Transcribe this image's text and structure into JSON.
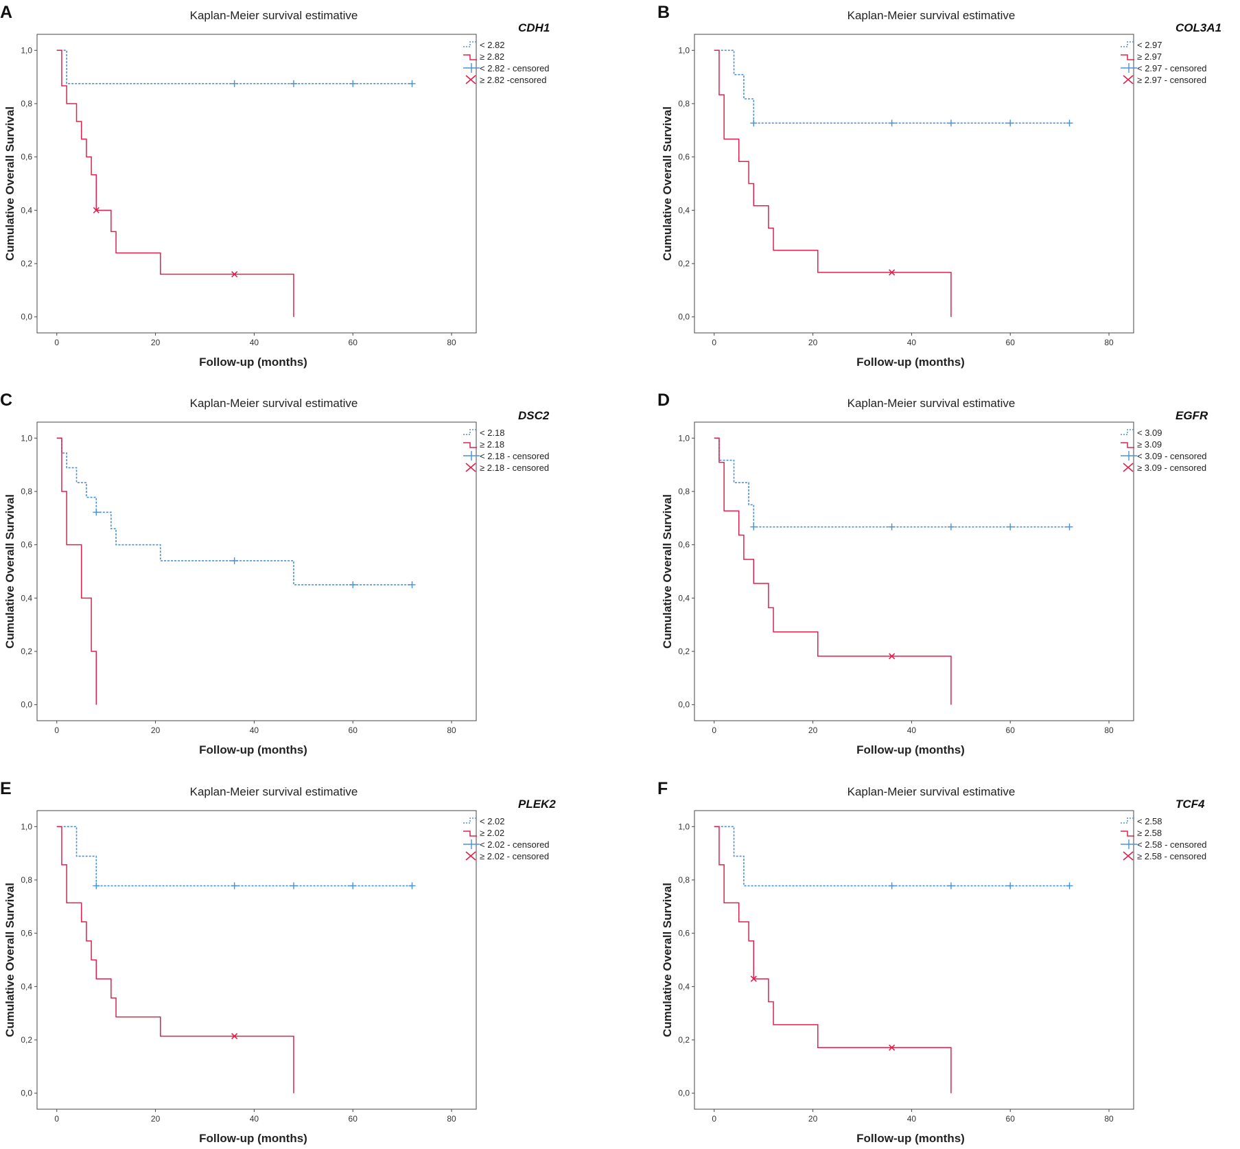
{
  "colors": {
    "low": "#4a90d9",
    "high": "#e0204a"
  },
  "chart_data": [
    {
      "panel": "A",
      "type": "line",
      "title": "Kaplan-Meier survival estimative",
      "xlabel": "Follow-up (months)",
      "ylabel": "Cumulative Overall Survival",
      "xlim": [
        -4,
        85
      ],
      "ylim": [
        -0.06,
        1.06
      ],
      "xticks": [
        "0",
        "20",
        "40",
        "60",
        "80"
      ],
      "yticks": [
        "0,0",
        "0,2",
        "0,4",
        "0,6",
        "0,8",
        "1,0"
      ],
      "legend": {
        "gene": "CDH1",
        "low": "< 2.82",
        "high": "≥ 2.82",
        "low_censored": "< 2.82 - censored",
        "high_censored": "≥ 2.82 -censored"
      },
      "series": [
        {
          "name": "< 2.82",
          "style": "dotted",
          "color": "low",
          "steps": [
            [
              0,
              1.0
            ],
            [
              2,
              0.875
            ],
            [
              72,
              0.875
            ]
          ],
          "censored": [
            36,
            48,
            60,
            72
          ]
        },
        {
          "name": "≥ 2.82",
          "style": "solid",
          "color": "high",
          "steps": [
            [
              0,
              1.0
            ],
            [
              1,
              0.867
            ],
            [
              2,
              0.8
            ],
            [
              4,
              0.733
            ],
            [
              5,
              0.667
            ],
            [
              6,
              0.6
            ],
            [
              7,
              0.533
            ],
            [
              8,
              0.4
            ],
            [
              11,
              0.32
            ],
            [
              12,
              0.24
            ],
            [
              21,
              0.16
            ],
            [
              48,
              0.0
            ]
          ],
          "censored": [
            8,
            36
          ]
        }
      ]
    },
    {
      "panel": "B",
      "type": "line",
      "title": "Kaplan-Meier survival estimative",
      "xlabel": "Follow-up (months)",
      "ylabel": "Cumulative Overall Survival",
      "xlim": [
        -4,
        85
      ],
      "ylim": [
        -0.06,
        1.06
      ],
      "xticks": [
        "0",
        "20",
        "40",
        "60",
        "80"
      ],
      "yticks": [
        "0,0",
        "0,2",
        "0,4",
        "0,6",
        "0,8",
        "1,0"
      ],
      "legend": {
        "gene": "COL3A1",
        "low": "< 2.97",
        "high": "≥ 2.97",
        "low_censored": "< 2.97 - censored",
        "high_censored": "≥ 2.97 - censored"
      },
      "series": [
        {
          "name": "< 2.97",
          "style": "dotted",
          "color": "low",
          "steps": [
            [
              0,
              1.0
            ],
            [
              4,
              0.909
            ],
            [
              6,
              0.818
            ],
            [
              8,
              0.727
            ],
            [
              72,
              0.727
            ]
          ],
          "censored": [
            8,
            36,
            48,
            60,
            72
          ]
        },
        {
          "name": "≥ 2.97",
          "style": "solid",
          "color": "high",
          "steps": [
            [
              0,
              1.0
            ],
            [
              1,
              0.833
            ],
            [
              2,
              0.667
            ],
            [
              5,
              0.583
            ],
            [
              7,
              0.5
            ],
            [
              8,
              0.417
            ],
            [
              11,
              0.333
            ],
            [
              12,
              0.25
            ],
            [
              21,
              0.167
            ],
            [
              48,
              0.0
            ]
          ],
          "censored": [
            36
          ]
        }
      ]
    },
    {
      "panel": "C",
      "type": "line",
      "title": "Kaplan-Meier survival estimative",
      "xlabel": "Follow-up (months)",
      "ylabel": "Cumulative Overall Survival",
      "xlim": [
        -4,
        85
      ],
      "ylim": [
        -0.06,
        1.06
      ],
      "xticks": [
        "0",
        "20",
        "40",
        "60",
        "80"
      ],
      "yticks": [
        "0,0",
        "0,2",
        "0,4",
        "0,6",
        "0,8",
        "1,0"
      ],
      "legend": {
        "gene": "DSC2",
        "low": "< 2.18",
        "high": "≥ 2.18",
        "low_censored": "< 2.18 - censored",
        "high_censored": "≥ 2.18  - censored"
      },
      "series": [
        {
          "name": "< 2.18",
          "style": "dotted",
          "color": "low",
          "steps": [
            [
              0,
              1.0
            ],
            [
              1,
              0.944
            ],
            [
              2,
              0.889
            ],
            [
              4,
              0.833
            ],
            [
              6,
              0.778
            ],
            [
              8,
              0.722
            ],
            [
              11,
              0.66
            ],
            [
              12,
              0.6
            ],
            [
              21,
              0.54
            ],
            [
              48,
              0.45
            ],
            [
              72,
              0.45
            ]
          ],
          "censored": [
            8,
            36,
            60,
            72
          ]
        },
        {
          "name": "≥ 2.18",
          "style": "solid",
          "color": "high",
          "steps": [
            [
              0,
              1.0
            ],
            [
              1,
              0.8
            ],
            [
              2,
              0.6
            ],
            [
              5,
              0.4
            ],
            [
              7,
              0.2
            ],
            [
              8,
              0.0
            ]
          ],
          "censored": []
        }
      ]
    },
    {
      "panel": "D",
      "type": "line",
      "title": "Kaplan-Meier survival estimative",
      "xlabel": "Follow-up (months)",
      "ylabel": "Cumulative Overall Survival",
      "xlim": [
        -4,
        85
      ],
      "ylim": [
        -0.06,
        1.06
      ],
      "xticks": [
        "0",
        "20",
        "40",
        "60",
        "80"
      ],
      "yticks": [
        "0,0",
        "0,2",
        "0,4",
        "0,6",
        "0,8",
        "1,0"
      ],
      "legend": {
        "gene": "EGFR",
        "low": "< 3.09",
        "high": "≥ 3.09",
        "low_censored": "< 3.09 - censored",
        "high_censored": "≥ 3.09 - censored"
      },
      "series": [
        {
          "name": "< 3.09",
          "style": "dotted",
          "color": "low",
          "steps": [
            [
              0,
              1.0
            ],
            [
              1,
              0.917
            ],
            [
              4,
              0.833
            ],
            [
              7,
              0.75
            ],
            [
              8,
              0.667
            ],
            [
              72,
              0.667
            ]
          ],
          "censored": [
            8,
            36,
            48,
            60,
            72
          ]
        },
        {
          "name": "≥ 3.09",
          "style": "solid",
          "color": "high",
          "steps": [
            [
              0,
              1.0
            ],
            [
              1,
              0.909
            ],
            [
              2,
              0.727
            ],
            [
              5,
              0.636
            ],
            [
              6,
              0.545
            ],
            [
              8,
              0.455
            ],
            [
              11,
              0.364
            ],
            [
              12,
              0.273
            ],
            [
              21,
              0.182
            ],
            [
              48,
              0.0
            ]
          ],
          "censored": [
            36
          ]
        }
      ]
    },
    {
      "panel": "E",
      "type": "line",
      "title": "Kaplan-Meier survival estimative",
      "xlabel": "Follow-up (months)",
      "ylabel": "Cumulative Overall Survival",
      "xlim": [
        -4,
        85
      ],
      "ylim": [
        -0.06,
        1.06
      ],
      "xticks": [
        "0",
        "20",
        "40",
        "60",
        "80"
      ],
      "yticks": [
        "0,0",
        "0,2",
        "0,4",
        "0,6",
        "0,8",
        "1,0"
      ],
      "legend": {
        "gene": "PLEK2",
        "low": "< 2.02",
        "high": "≥ 2.02",
        "low_censored": "< 2.02 - censored",
        "high_censored": "≥ 2.02 - censored"
      },
      "series": [
        {
          "name": "< 2.02",
          "style": "dotted",
          "color": "low",
          "steps": [
            [
              0,
              1.0
            ],
            [
              4,
              0.889
            ],
            [
              8,
              0.778
            ],
            [
              72,
              0.778
            ]
          ],
          "censored": [
            8,
            36,
            48,
            60,
            72
          ]
        },
        {
          "name": "≥ 2.02",
          "style": "solid",
          "color": "high",
          "steps": [
            [
              0,
              1.0
            ],
            [
              1,
              0.857
            ],
            [
              2,
              0.714
            ],
            [
              5,
              0.643
            ],
            [
              6,
              0.571
            ],
            [
              7,
              0.5
            ],
            [
              8,
              0.429
            ],
            [
              11,
              0.357
            ],
            [
              12,
              0.286
            ],
            [
              21,
              0.214
            ],
            [
              48,
              0.0
            ]
          ],
          "censored": [
            36
          ]
        }
      ]
    },
    {
      "panel": "F",
      "type": "line",
      "title": "Kaplan-Meier survival estimative",
      "xlabel": "Follow-up (months)",
      "ylabel": "Cumulative Overall Survival",
      "xlim": [
        -4,
        85
      ],
      "ylim": [
        -0.06,
        1.06
      ],
      "xticks": [
        "0",
        "20",
        "40",
        "60",
        "80"
      ],
      "yticks": [
        "0,0",
        "0,2",
        "0,4",
        "0,6",
        "0,8",
        "1,0"
      ],
      "legend": {
        "gene": "TCF4",
        "low": "< 2.58",
        "high": "≥ 2.58",
        "low_censored": "< 2.58 - censored",
        "high_censored": "≥ 2.58 - censored"
      },
      "series": [
        {
          "name": "< 2.58",
          "style": "dotted",
          "color": "low",
          "steps": [
            [
              0,
              1.0
            ],
            [
              4,
              0.889
            ],
            [
              6,
              0.778
            ],
            [
              72,
              0.778
            ]
          ],
          "censored": [
            36,
            48,
            60,
            72
          ]
        },
        {
          "name": "≥ 2.58",
          "style": "solid",
          "color": "high",
          "steps": [
            [
              0,
              1.0
            ],
            [
              1,
              0.857
            ],
            [
              2,
              0.714
            ],
            [
              5,
              0.643
            ],
            [
              7,
              0.571
            ],
            [
              8,
              0.429
            ],
            [
              11,
              0.343
            ],
            [
              12,
              0.257
            ],
            [
              21,
              0.171
            ],
            [
              48,
              0.0
            ]
          ],
          "censored": [
            8,
            36
          ]
        }
      ]
    }
  ]
}
